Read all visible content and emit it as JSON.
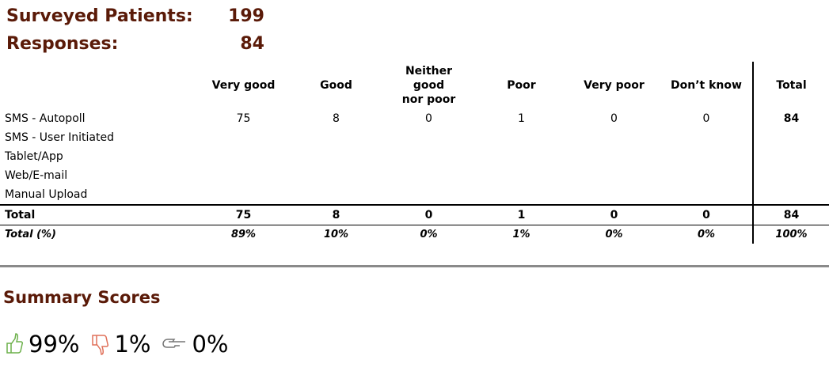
{
  "header": {
    "rows": [
      {
        "label": "Surveyed Patients:",
        "value": 199
      },
      {
        "label": "Responses:",
        "value": 84
      }
    ]
  },
  "table": {
    "columns": [
      "Very good",
      "Good",
      "Neither good nor poor",
      "Poor",
      "Very poor",
      "Don’t know",
      "Total"
    ],
    "rows": [
      {
        "label": "SMS - Autopoll",
        "cells": [
          75,
          8,
          0,
          1,
          0,
          0,
          84
        ]
      },
      {
        "label": "SMS - User Initiated",
        "cells": []
      },
      {
        "label": "Tablet/App",
        "cells": []
      },
      {
        "label": "Web/E-mail",
        "cells": []
      },
      {
        "label": "Manual Upload",
        "cells": []
      }
    ],
    "total": {
      "label": "Total",
      "cells": [
        75,
        8,
        0,
        1,
        0,
        0,
        84
      ]
    },
    "total_pct": {
      "label": "Total (%)",
      "cells": [
        "89%",
        "10%",
        "0%",
        "1%",
        "0%",
        "0%",
        "100%"
      ]
    }
  },
  "summary": {
    "title": "Summary Scores",
    "scores": [
      "99%",
      "1%",
      "0%"
    ]
  }
}
